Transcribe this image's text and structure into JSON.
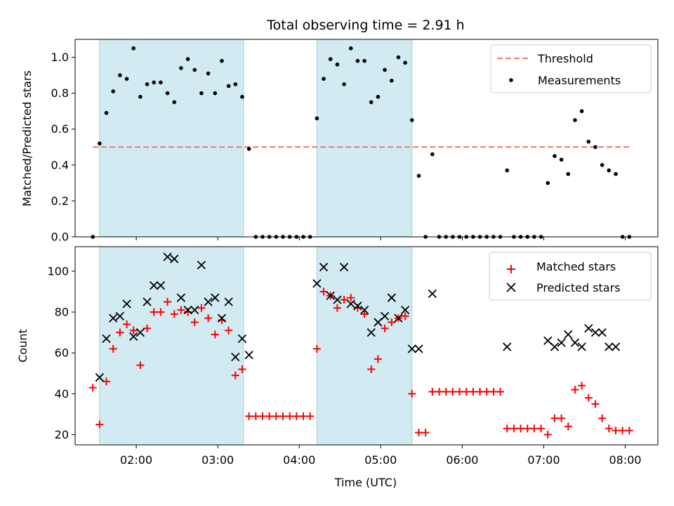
{
  "chart_data": [
    {
      "type": "scatter",
      "title": "Total observing time = 2.91 h",
      "xlabel": "",
      "ylabel": "Matched/Predicted stars",
      "xlim": [
        "01:15",
        "08:24"
      ],
      "ylim": [
        0,
        1.1
      ],
      "yticks": [
        "0.0",
        "0.2",
        "0.4",
        "0.6",
        "0.8",
        "1.0"
      ],
      "legend": {
        "position": "top-right",
        "entries": [
          "Threshold",
          "Measurements"
        ]
      },
      "observing_windows": [
        [
          "01:33",
          "03:19"
        ],
        [
          "04:13",
          "05:23"
        ]
      ],
      "threshold": {
        "name": "Threshold",
        "value": 0.5,
        "x": [
          "01:28",
          "08:03"
        ],
        "color": "#f08080"
      },
      "series": [
        {
          "name": "Measurements",
          "color": "#000000",
          "x": [
            "01:28",
            "01:33",
            "01:38",
            "01:43",
            "01:48",
            "01:53",
            "01:58",
            "02:03",
            "02:08",
            "02:13",
            "02:18",
            "02:23",
            "02:28",
            "02:33",
            "02:38",
            "02:43",
            "02:48",
            "02:53",
            "02:58",
            "03:03",
            "03:08",
            "03:13",
            "03:18",
            "03:23",
            "03:28",
            "03:33",
            "03:38",
            "03:43",
            "03:48",
            "03:53",
            "03:58",
            "04:03",
            "04:08",
            "04:13",
            "04:18",
            "04:23",
            "04:28",
            "04:33",
            "04:38",
            "04:43",
            "04:48",
            "04:53",
            "04:58",
            "05:03",
            "05:08",
            "05:13",
            "05:18",
            "05:23",
            "05:28",
            "05:33",
            "05:38",
            "05:43",
            "05:48",
            "05:53",
            "05:58",
            "06:03",
            "06:08",
            "06:13",
            "06:18",
            "06:23",
            "06:28",
            "06:33",
            "06:38",
            "06:43",
            "06:48",
            "06:53",
            "06:58",
            "07:03",
            "07:08",
            "07:13",
            "07:18",
            "07:23",
            "07:28",
            "07:33",
            "07:38",
            "07:43",
            "07:48",
            "07:53",
            "07:58",
            "08:03"
          ],
          "y": [
            0,
            0.52,
            0.69,
            0.81,
            0.9,
            0.88,
            1.05,
            0.78,
            0.85,
            0.86,
            0.86,
            0.8,
            0.75,
            0.94,
            0.99,
            0.93,
            0.8,
            0.91,
            0.8,
            0.98,
            0.84,
            0.85,
            0.78,
            0.49,
            0,
            0,
            0,
            0,
            0,
            0,
            0,
            0,
            0,
            0.66,
            0.88,
            0.99,
            0.96,
            0.85,
            1.05,
            0.98,
            0.98,
            0.75,
            0.78,
            0.93,
            0.87,
            1.0,
            0.97,
            0.65,
            0.34,
            0,
            0.46,
            0,
            0,
            0,
            0,
            0,
            0,
            0,
            0,
            0,
            0,
            0.37,
            0,
            0,
            0,
            0,
            0,
            0.3,
            0.45,
            0.43,
            0.35,
            0.65,
            0.7,
            0.53,
            0.5,
            0.4,
            0.37,
            0.35,
            0,
            0
          ]
        }
      ]
    },
    {
      "type": "scatter",
      "title": "",
      "xlabel": "Time (UTC)",
      "ylabel": "Count",
      "xlim": [
        "01:15",
        "08:24"
      ],
      "ylim": [
        15,
        112
      ],
      "xticks": [
        "02:00",
        "03:00",
        "04:00",
        "05:00",
        "06:00",
        "07:00",
        "08:00"
      ],
      "yticks": [
        "20",
        "40",
        "60",
        "80",
        "100"
      ],
      "legend": {
        "position": "top-right",
        "entries": [
          "Matched stars",
          "Predicted stars"
        ]
      },
      "observing_windows": [
        [
          "01:33",
          "03:19"
        ],
        [
          "04:13",
          "05:23"
        ]
      ],
      "series": [
        {
          "name": "Matched stars",
          "marker": "plus",
          "color": "#ff0000",
          "x": [
            "01:28",
            "01:33",
            "01:38",
            "01:43",
            "01:48",
            "01:53",
            "01:58",
            "02:03",
            "02:08",
            "02:13",
            "02:18",
            "02:23",
            "02:28",
            "02:33",
            "02:38",
            "02:43",
            "02:48",
            "02:53",
            "02:58",
            "03:03",
            "03:08",
            "03:13",
            "03:18",
            "03:23",
            "03:28",
            "03:33",
            "03:38",
            "03:43",
            "03:48",
            "03:53",
            "03:58",
            "04:03",
            "04:08",
            "04:13",
            "04:18",
            "04:23",
            "04:28",
            "04:33",
            "04:38",
            "04:43",
            "04:48",
            "04:53",
            "04:58",
            "05:03",
            "05:08",
            "05:13",
            "05:18",
            "05:23",
            "05:28",
            "05:33",
            "05:38",
            "05:43",
            "05:48",
            "05:53",
            "05:58",
            "06:03",
            "06:08",
            "06:13",
            "06:18",
            "06:23",
            "06:28",
            "06:33",
            "06:38",
            "06:43",
            "06:48",
            "06:53",
            "06:58",
            "07:03",
            "07:08",
            "07:13",
            "07:18",
            "07:23",
            "07:28",
            "07:33",
            "07:38",
            "07:43",
            "07:48",
            "07:53",
            "07:58",
            "08:03"
          ],
          "y": [
            43,
            25,
            46,
            62,
            70,
            74,
            71,
            54,
            72,
            80,
            80,
            85,
            79,
            81,
            80,
            75,
            82,
            77,
            69,
            76,
            71,
            49,
            52,
            29,
            29,
            29,
            29,
            29,
            29,
            29,
            29,
            29,
            29,
            62,
            90,
            88,
            82,
            86,
            87,
            82,
            79,
            52,
            57,
            72,
            75,
            77,
            78,
            40,
            21,
            21,
            41,
            41,
            41,
            41,
            41,
            41,
            41,
            41,
            41,
            41,
            41,
            23,
            23,
            23,
            23,
            23,
            23,
            20,
            28,
            28,
            24,
            42,
            44,
            38,
            35,
            28,
            23,
            22,
            22,
            22
          ]
        },
        {
          "name": "Predicted stars",
          "marker": "x",
          "color": "#000000",
          "x": [
            "01:33",
            "01:38",
            "01:43",
            "01:48",
            "01:53",
            "01:58",
            "02:03",
            "02:08",
            "02:13",
            "02:18",
            "02:23",
            "02:28",
            "02:33",
            "02:38",
            "02:43",
            "02:48",
            "02:53",
            "02:58",
            "03:03",
            "03:08",
            "03:13",
            "03:18",
            "03:23",
            "04:13",
            "04:18",
            "04:23",
            "04:28",
            "04:33",
            "04:38",
            "04:43",
            "04:48",
            "04:53",
            "04:58",
            "05:03",
            "05:08",
            "05:13",
            "05:18",
            "05:23",
            "05:28",
            "05:38",
            "06:33",
            "07:03",
            "07:08",
            "07:13",
            "07:18",
            "07:23",
            "07:28",
            "07:33",
            "07:38",
            "07:43",
            "07:48",
            "07:53"
          ],
          "y": [
            48,
            67,
            77,
            78,
            84,
            68,
            70,
            85,
            93,
            93,
            107,
            106,
            87,
            81,
            81,
            103,
            85,
            87,
            77,
            85,
            58,
            67,
            59,
            94,
            102,
            88,
            86,
            102,
            84,
            83,
            81,
            70,
            75,
            78,
            87,
            77,
            81,
            62,
            62,
            89,
            63,
            66,
            63,
            65,
            69,
            65,
            63,
            72,
            70,
            70,
            63,
            63
          ]
        }
      ]
    }
  ]
}
